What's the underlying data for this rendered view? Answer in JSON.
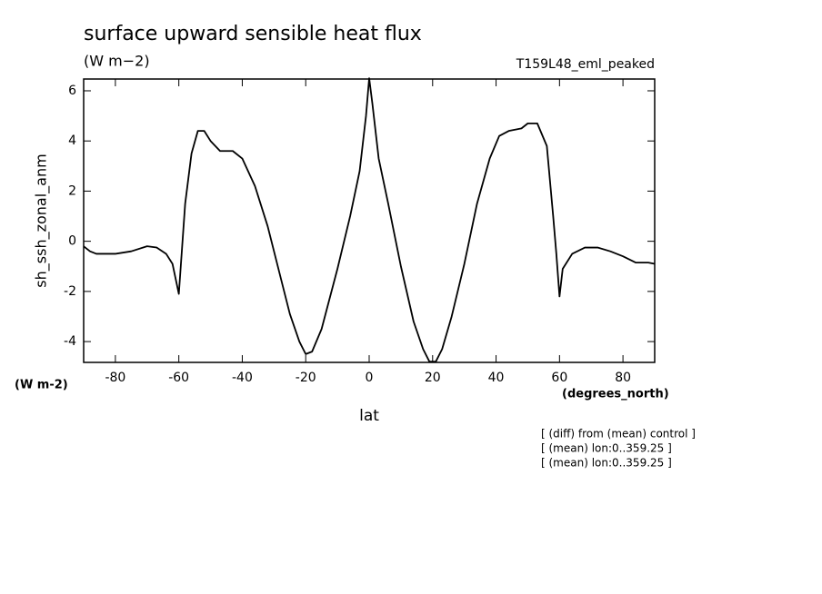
{
  "chart_data": {
    "type": "line",
    "title": "surface upward sensible heat flux",
    "units": "(W m−2)",
    "experiment": "T159L48_eml_peaked",
    "ylabel": "sh_ssh_zonal_anm",
    "yunits": "(W m-2)",
    "xunits": "(degrees_north)",
    "xlabel": "lat",
    "notes": [
      "[ (diff) from (mean) control ]",
      "[ (mean) lon:0..359.25 ]",
      "[ (mean) lon:0..359.25 ]"
    ],
    "color": "#000000",
    "xlim": [
      -90,
      90
    ],
    "ylim": [
      -4.83,
      6.47
    ],
    "xticks": [
      -80,
      -60,
      -40,
      -20,
      0,
      20,
      40,
      60,
      80
    ],
    "yticks": [
      -4,
      -2,
      0,
      2,
      4,
      6
    ],
    "x": [
      -90,
      -88,
      -86,
      -80,
      -75,
      -70,
      -67,
      -64,
      -62,
      -60,
      -58,
      -56,
      -54,
      -52,
      -50,
      -47,
      -43,
      -40,
      -36,
      -32,
      -28,
      -25,
      -22,
      -20,
      -18,
      -15,
      -10,
      -6,
      -3,
      -1,
      0,
      1,
      3,
      6,
      10,
      14,
      17,
      19,
      21,
      23,
      26,
      30,
      34,
      38,
      41,
      44,
      48,
      50,
      53,
      56,
      58,
      59,
      60,
      61,
      64,
      68,
      72,
      76,
      80,
      84,
      88,
      90
    ],
    "values": [
      -0.2,
      -0.4,
      -0.5,
      -0.5,
      -0.4,
      -0.2,
      -0.25,
      -0.5,
      -0.9,
      -2.1,
      1.5,
      3.5,
      4.4,
      4.4,
      4.0,
      3.6,
      3.6,
      3.3,
      2.2,
      0.6,
      -1.4,
      -2.9,
      -4.0,
      -4.5,
      -4.4,
      -3.5,
      -1.1,
      1.0,
      2.8,
      5.0,
      6.5,
      5.5,
      3.3,
      1.5,
      -1.0,
      -3.2,
      -4.3,
      -4.8,
      -4.8,
      -4.3,
      -3.0,
      -0.9,
      1.5,
      3.3,
      4.2,
      4.4,
      4.5,
      4.7,
      4.7,
      3.8,
      1.0,
      -0.5,
      -2.2,
      -1.1,
      -0.5,
      -0.25,
      -0.25,
      -0.4,
      -0.6,
      -0.85,
      -0.85,
      -0.9
    ]
  }
}
